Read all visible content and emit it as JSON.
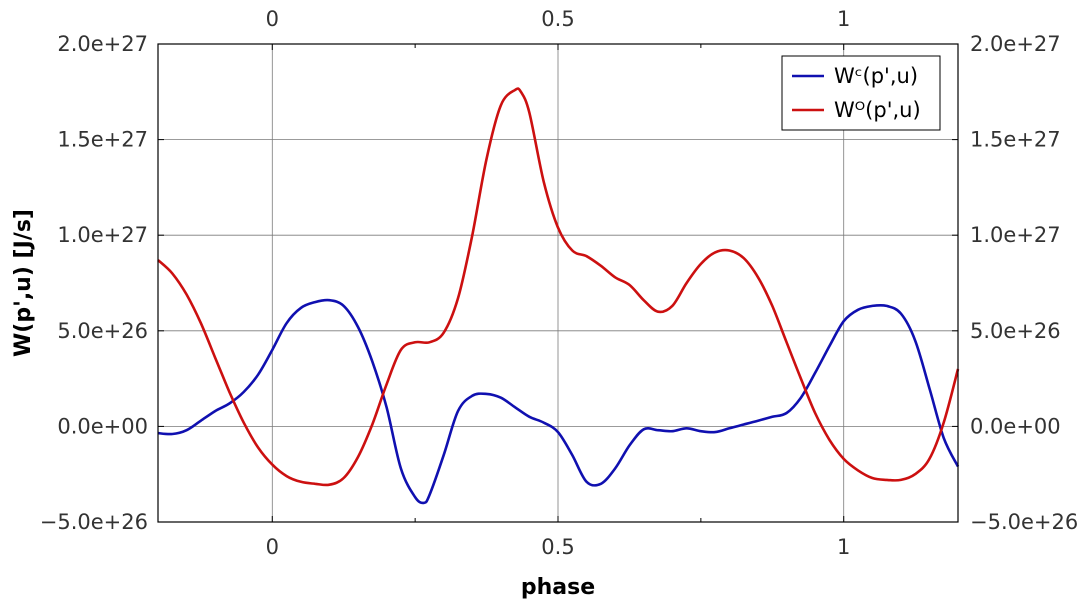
{
  "chart_data": {
    "type": "line",
    "xlabel": "phase",
    "ylabel": "W(p',u)   [J/s]",
    "xlim": [
      -0.2,
      1.2
    ],
    "ylim": [
      -5e+26,
      2e+27
    ],
    "x_ticks": [
      0,
      0.5,
      1
    ],
    "x_tick_labels": [
      "0",
      "0.5",
      "1"
    ],
    "y_ticks": [
      -5e+26,
      0,
      5e+26,
      1e+27,
      1.5e+27,
      2e+27
    ],
    "y_tick_labels": [
      "−5.0e+26",
      "0.0e+00",
      "5.0e+26",
      "1.0e+27",
      "1.5e+27",
      "2.0e+27"
    ],
    "grid": true,
    "legend_position": "top-right",
    "series": [
      {
        "name": "Wᶜ(p',u)",
        "color": "#1010b0",
        "x": [
          -0.2,
          -0.175,
          -0.15,
          -0.125,
          -0.1,
          -0.075,
          -0.05,
          -0.025,
          0.0,
          0.025,
          0.05,
          0.075,
          0.1,
          0.125,
          0.15,
          0.175,
          0.2,
          0.225,
          0.25,
          0.265,
          0.275,
          0.3,
          0.325,
          0.35,
          0.375,
          0.4,
          0.425,
          0.45,
          0.475,
          0.5,
          0.525,
          0.55,
          0.575,
          0.6,
          0.625,
          0.65,
          0.675,
          0.7,
          0.725,
          0.75,
          0.775,
          0.8,
          0.825,
          0.85,
          0.875,
          0.9,
          0.925,
          0.95,
          0.975,
          1.0,
          1.025,
          1.05,
          1.075,
          1.1,
          1.125,
          1.15,
          1.175,
          1.2
        ],
        "y": [
          -3.5e+25,
          -4e+25,
          -2e+25,
          3e+25,
          8e+25,
          1.2e+26,
          1.8e+26,
          2.7e+26,
          4e+26,
          5.4e+26,
          6.2e+26,
          6.5e+26,
          6.6e+26,
          6.3e+26,
          5.2e+26,
          3.4e+26,
          1e+26,
          -2.2e+26,
          -3.7e+26,
          -4e+26,
          -3.6e+26,
          -1.5e+26,
          8e+25,
          1.6e+26,
          1.7e+26,
          1.5e+26,
          1e+26,
          5e+25,
          2e+25,
          -3e+25,
          -1.5e+26,
          -2.9e+26,
          -3e+26,
          -2.2e+26,
          -1e+26,
          -1.5e+25,
          -2e+25,
          -2.5e+25,
          -1e+25,
          -2.5e+25,
          -3e+25,
          -1e+25,
          1e+25,
          3e+25,
          5e+25,
          7e+25,
          1.5e+26,
          2.8e+26,
          4.2e+26,
          5.5e+26,
          6.1e+26,
          6.3e+26,
          6.3e+26,
          5.9e+26,
          4.5e+26,
          2e+26,
          -6e+25,
          -2.1e+26
        ]
      },
      {
        "name": "Wᴼ(p',u)",
        "color": "#cc1010",
        "x": [
          -0.2,
          -0.175,
          -0.15,
          -0.125,
          -0.1,
          -0.075,
          -0.05,
          -0.025,
          0.0,
          0.025,
          0.05,
          0.075,
          0.1,
          0.125,
          0.15,
          0.175,
          0.2,
          0.225,
          0.25,
          0.275,
          0.3,
          0.325,
          0.35,
          0.375,
          0.4,
          0.425,
          0.435,
          0.45,
          0.475,
          0.5,
          0.525,
          0.55,
          0.575,
          0.6,
          0.625,
          0.65,
          0.675,
          0.7,
          0.725,
          0.75,
          0.775,
          0.8,
          0.825,
          0.85,
          0.875,
          0.9,
          0.925,
          0.95,
          0.975,
          1.0,
          1.025,
          1.05,
          1.075,
          1.1,
          1.125,
          1.15,
          1.175,
          1.2
        ],
        "y": [
          8.7e+26,
          8e+26,
          6.9e+26,
          5.4e+26,
          3.6e+26,
          1.8e+26,
          2e+25,
          -1.1e+26,
          -2e+26,
          -2.6e+26,
          -2.9e+26,
          -3e+26,
          -3.05e+26,
          -2.7e+26,
          -1.6e+26,
          1e+25,
          2.2e+26,
          4e+26,
          4.4e+26,
          4.4e+26,
          4.9e+26,
          6.7e+26,
          1e+27,
          1.4e+27,
          1.68e+27,
          1.76e+27,
          1.75e+27,
          1.64e+27,
          1.28e+27,
          1.04e+27,
          9.2e+26,
          8.9e+26,
          8.4e+26,
          7.8e+26,
          7.4e+26,
          6.6e+26,
          6e+26,
          6.3e+26,
          7.5e+26,
          8.5e+26,
          9.1e+26,
          9.2e+26,
          8.8e+26,
          7.8e+26,
          6.3e+26,
          4.4e+26,
          2.5e+26,
          7e+25,
          -7e+25,
          -1.7e+26,
          -2.3e+26,
          -2.7e+26,
          -2.8e+26,
          -2.8e+26,
          -2.5e+26,
          -1.7e+26,
          2e+25,
          3e+26
        ]
      }
    ]
  }
}
